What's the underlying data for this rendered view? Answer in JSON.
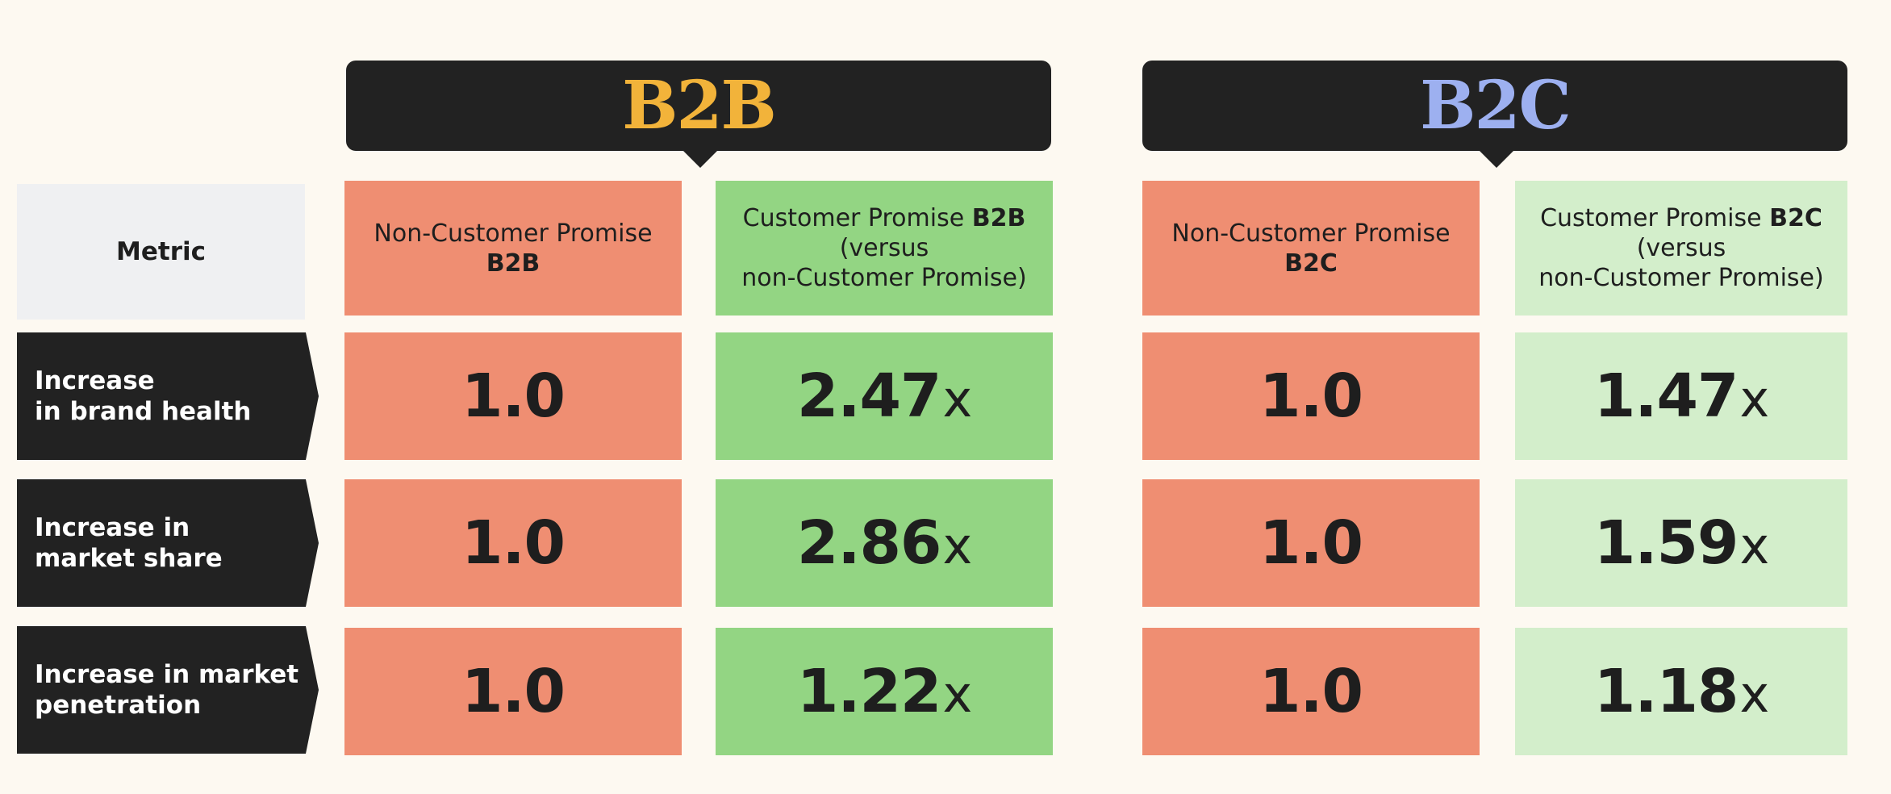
{
  "groups": [
    {
      "id": "b2b",
      "title": "B2B",
      "title_color": "#f2b33a"
    },
    {
      "id": "b2c",
      "title": "B2C",
      "title_color": "#9db0f0"
    }
  ],
  "header": {
    "metric_label": "Metric",
    "columns": [
      {
        "text": "Non-Customer Promise",
        "bold_suffix": "B2B",
        "suffix_on_new_line": true
      },
      {
        "prefix": "Customer Promise",
        "bold": "B2B",
        "line2": "(versus",
        "line3": "non-Customer Promise)"
      },
      {
        "text": "Non-Customer Promise",
        "bold_suffix": "B2C",
        "suffix_on_new_line": true
      },
      {
        "prefix": "Customer Promise",
        "bold": "B2C",
        "line2": "(versus",
        "line3": "non-Customer Promise)"
      }
    ]
  },
  "colors": {
    "background": "#fdf9f1",
    "dark": "#222222",
    "non_promise": "#ef8e72",
    "promise_b2b": "#93d583",
    "promise_b2c": "#d3eecb",
    "metric_header": "#eff0f2"
  },
  "rows": [
    {
      "label": "Increase\nin brand health",
      "values": [
        "1.0",
        "2.47",
        "1.0",
        "1.47"
      ]
    },
    {
      "label": "Increase in\nmarket share",
      "values": [
        "1.0",
        "2.86",
        "1.0",
        "1.59"
      ]
    },
    {
      "label": "Increase in market\npenetration",
      "values": [
        "1.0",
        "1.22",
        "1.0",
        "1.18"
      ]
    }
  ],
  "multiplier_unit": "x",
  "chart_data": {
    "type": "table",
    "title": "",
    "columns": [
      "Metric",
      "Non-Customer Promise B2B",
      "Customer Promise B2B (versus non-Customer Promise)",
      "Non-Customer Promise B2C",
      "Customer Promise B2C (versus non-Customer Promise)"
    ],
    "series": [
      {
        "name": "Non-Customer Promise B2B",
        "values": [
          1.0,
          1.0,
          1.0
        ]
      },
      {
        "name": "Customer Promise B2B (versus non-Customer Promise)",
        "values": [
          2.47,
          2.86,
          1.22
        ]
      },
      {
        "name": "Non-Customer Promise B2C",
        "values": [
          1.0,
          1.0,
          1.0
        ]
      },
      {
        "name": "Customer Promise B2C (versus non-Customer Promise)",
        "values": [
          1.47,
          1.59,
          1.18
        ]
      }
    ],
    "categories": [
      "Increase in brand health",
      "Increase in market share",
      "Increase in market penetration"
    ]
  }
}
